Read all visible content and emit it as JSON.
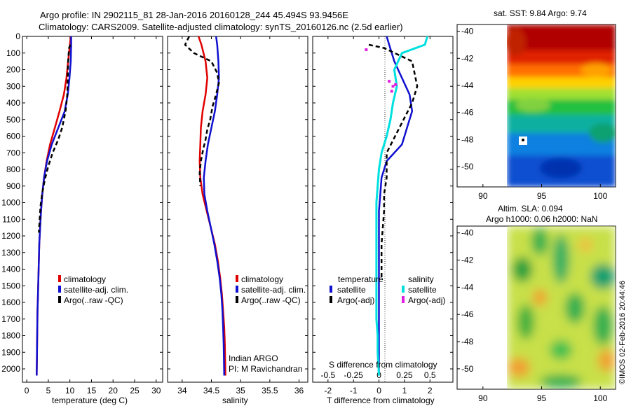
{
  "figure": {
    "title_line1": "Argo profile: IN 2902115_81 28-Jan-2016 20160128_244 45.494S 93.9456E",
    "title_line2": "Climatology: CARS2009. Satellite-adjusted climatology: synTS_20160126.nc (2.5d earlier)",
    "credit": "©IMOS 02-Feb-2016 20:44:46"
  },
  "chart_data": [
    {
      "id": "temperature",
      "type": "line",
      "xlabel": "temperature (deg C)",
      "ylabel": "",
      "xlim": [
        -1,
        31.5
      ],
      "ylim": [
        0,
        2080
      ],
      "y_reversed": true,
      "xticks": [
        0,
        5,
        10,
        15,
        20,
        25,
        30
      ],
      "yticks": [
        0,
        100,
        200,
        300,
        400,
        500,
        600,
        700,
        800,
        900,
        1000,
        1100,
        1200,
        1300,
        1400,
        1500,
        1600,
        1700,
        1800,
        1900,
        2000
      ],
      "legend": [
        "climatology",
        "satellite-adj. clim.",
        "Argo(..raw -QC)"
      ],
      "legend_placement": "center",
      "series": [
        {
          "name": "climatology",
          "color": "#e00000",
          "dash": "",
          "width": 2.5,
          "x": [
            10.2,
            10.0,
            9.6,
            9.2,
            8.6,
            7.6,
            6.5,
            5.4,
            4.6,
            4.0,
            3.6,
            3.3,
            3.1,
            2.9,
            2.8,
            2.7,
            2.6,
            2.5,
            2.45,
            2.4,
            2.35,
            2.3
          ],
          "y": [
            0,
            50,
            150,
            250,
            350,
            450,
            550,
            650,
            750,
            850,
            950,
            1050,
            1150,
            1250,
            1350,
            1450,
            1550,
            1650,
            1750,
            1850,
            1950,
            2040
          ]
        },
        {
          "name": "satellite-adj. clim.",
          "color": "#1010d0",
          "dash": "",
          "width": 2.5,
          "x": [
            10.3,
            10.3,
            10.2,
            9.9,
            9.5,
            8.8,
            7.3,
            5.8,
            4.7,
            4.0,
            3.6,
            3.3,
            3.1,
            2.9,
            2.8,
            2.7,
            2.6,
            2.5,
            2.45,
            2.4,
            2.35,
            2.3
          ],
          "y": [
            0,
            50,
            150,
            250,
            350,
            450,
            550,
            650,
            750,
            850,
            950,
            1050,
            1150,
            1250,
            1350,
            1450,
            1550,
            1650,
            1750,
            1850,
            1950,
            2040
          ]
        },
        {
          "name": "Argo(..raw -QC)",
          "color": "#000000",
          "dash": "6,4",
          "width": 2.5,
          "x": [
            10.1,
            9.8,
            9.6,
            9.5,
            9.4,
            9.0,
            8.2,
            7.3,
            6.0,
            5.0,
            4.2,
            3.6,
            3.2,
            3.0,
            2.8
          ],
          "y": [
            50,
            70,
            150,
            250,
            350,
            450,
            550,
            620,
            700,
            780,
            860,
            940,
            1020,
            1100,
            1180
          ]
        }
      ]
    },
    {
      "id": "salinity",
      "type": "line",
      "xlabel": "salinity",
      "ylabel": "",
      "xlim": [
        33.75,
        36.15
      ],
      "ylim": [
        0,
        2080
      ],
      "y_reversed": true,
      "xticks": [
        34,
        34.5,
        35,
        35.5,
        36
      ],
      "xticklabels": [
        "34",
        "34.5",
        "35",
        "35.5",
        "36"
      ],
      "legend": [
        "climatology",
        "satellite-adj. clim.",
        "Argo(..raw -QC)"
      ],
      "legend_placement": "center",
      "annotation": [
        "Indian ARGO",
        "PI: M Ravichandran"
      ],
      "series": [
        {
          "name": "climatology",
          "color": "#e00000",
          "dash": "",
          "width": 2.5,
          "x": [
            34.28,
            34.33,
            34.4,
            34.43,
            34.4,
            34.35,
            34.32,
            34.31,
            34.3,
            34.31,
            34.35,
            34.42,
            34.49,
            34.56,
            34.61,
            34.65,
            34.68,
            34.7,
            34.72,
            34.73,
            34.74
          ],
          "y": [
            0,
            50,
            150,
            250,
            350,
            450,
            550,
            650,
            750,
            850,
            950,
            1050,
            1150,
            1250,
            1350,
            1450,
            1550,
            1650,
            1750,
            1850,
            2040
          ]
        },
        {
          "name": "satellite-adj. clim.",
          "color": "#1010d0",
          "dash": "",
          "width": 2.5,
          "x": [
            34.58,
            34.6,
            34.62,
            34.63,
            34.6,
            34.56,
            34.5,
            34.44,
            34.4,
            34.37,
            34.38,
            34.43,
            34.49,
            34.55,
            34.6,
            34.64,
            34.67,
            34.69,
            34.7,
            34.71,
            34.72
          ],
          "y": [
            0,
            50,
            150,
            250,
            350,
            450,
            550,
            650,
            750,
            850,
            950,
            1050,
            1150,
            1250,
            1350,
            1450,
            1550,
            1650,
            1750,
            1850,
            2040
          ]
        },
        {
          "name": "Argo(..raw -QC)",
          "color": "#000000",
          "dash": "6,4",
          "width": 2.5,
          "x": [
            34.12,
            34.05,
            34.2,
            34.5,
            34.6,
            34.63,
            34.58,
            34.52,
            34.48,
            34.43,
            34.4,
            34.36,
            34.32,
            34.3,
            34.31
          ],
          "y": [
            0,
            50,
            100,
            150,
            220,
            280,
            350,
            420,
            500,
            560,
            620,
            680,
            750,
            820,
            900
          ]
        }
      ]
    },
    {
      "id": "difference",
      "type": "line",
      "xlabel": "T difference from climatology",
      "xlabel_top": "S difference from climatology",
      "xlim": [
        -2.6,
        2.9
      ],
      "ylim": [
        0,
        2080
      ],
      "y_reversed": true,
      "xticks": [
        -2,
        -1,
        0,
        1,
        2
      ],
      "xticks_top": [
        -0.5,
        -0.25,
        0,
        0.25,
        0.5
      ],
      "xticklabels_top": [
        "-0.5",
        "-0.25",
        "0",
        "0.25",
        "0.5"
      ],
      "legend_headers": [
        "temperature",
        "salinity"
      ],
      "legend": [
        "satellite",
        "Argo(-adj)",
        "satellite",
        "Argo(-adj)"
      ],
      "legend_placement": "center",
      "series": [
        {
          "name": "satellite",
          "group": "temperature",
          "color": "#1010d0",
          "dash": "",
          "width": 2.5,
          "x": [
            0.3,
            0.4,
            0.6,
            1.2,
            1.3,
            1.1,
            0.9,
            0.3,
            0.1,
            0.05,
            0.0,
            0.0,
            0.0,
            0.0,
            0.0,
            0.0,
            0.0,
            0.0
          ],
          "y": [
            0,
            50,
            150,
            350,
            450,
            550,
            650,
            750,
            850,
            950,
            1050,
            1150,
            1250,
            1350,
            1450,
            1650,
            1850,
            2040
          ]
        },
        {
          "name": "Argo(-adj)",
          "group": "temperature",
          "color": "#000000",
          "dash": "6,4",
          "width": 2.5,
          "x": [
            -0.4,
            0.2,
            1.3,
            1.5,
            1.3,
            0.8,
            0.3,
            0.3,
            0.2,
            0.2,
            0.15,
            0.1,
            0.1,
            0.1
          ],
          "y": [
            50,
            70,
            150,
            300,
            400,
            550,
            700,
            850,
            950,
            1050,
            1150,
            1250,
            1350,
            1450
          ]
        },
        {
          "name": "satellite",
          "group": "salinity",
          "color": "#00e0e0",
          "dash": "",
          "width": 3,
          "x": [
            1.9,
            1.8,
            0.9,
            0.6,
            0.7,
            0.55,
            0.45,
            0.3,
            0.1,
            0.0,
            -0.05,
            -0.1,
            -0.1,
            -0.1,
            -0.1,
            -0.1,
            -0.1,
            -0.1,
            -0.1,
            -0.05,
            -0.05,
            0.0
          ],
          "y": [
            0,
            50,
            100,
            200,
            300,
            400,
            500,
            600,
            700,
            800,
            900,
            1000,
            1100,
            1200,
            1300,
            1400,
            1500,
            1600,
            1700,
            1800,
            1900,
            2040
          ]
        },
        {
          "name": "Argo(-adj)",
          "group": "salinity",
          "color": "#e020e0",
          "dash": "",
          "width": 0,
          "points": [
            [
              0.4,
              270
            ],
            [
              0.55,
              300
            ],
            [
              0.5,
              330
            ],
            [
              0.65,
              290
            ],
            [
              -0.5,
              80
            ]
          ]
        }
      ]
    },
    {
      "id": "sst_map",
      "type": "heatmap",
      "title": "sat. SST: 9.84  Argo: 9.74",
      "xlim": [
        87.8,
        101.3
      ],
      "ylim": [
        -51.5,
        -39.5
      ],
      "xticks": [
        90,
        95,
        100
      ],
      "yticks": [
        -40,
        -42,
        -44,
        -46,
        -48,
        -50
      ]
    },
    {
      "id": "sla_map",
      "type": "heatmap",
      "title_line1": "Altim. SLA: 0.094",
      "title_line2": "Argo h1000: 0.06 h2000: NaN",
      "xlim": [
        87.8,
        101.3
      ],
      "ylim": [
        -51.5,
        -39.5
      ],
      "xticks": [
        90,
        95,
        100
      ],
      "yticks": [
        -40,
        -42,
        -44,
        -46,
        -48,
        -50
      ]
    }
  ]
}
